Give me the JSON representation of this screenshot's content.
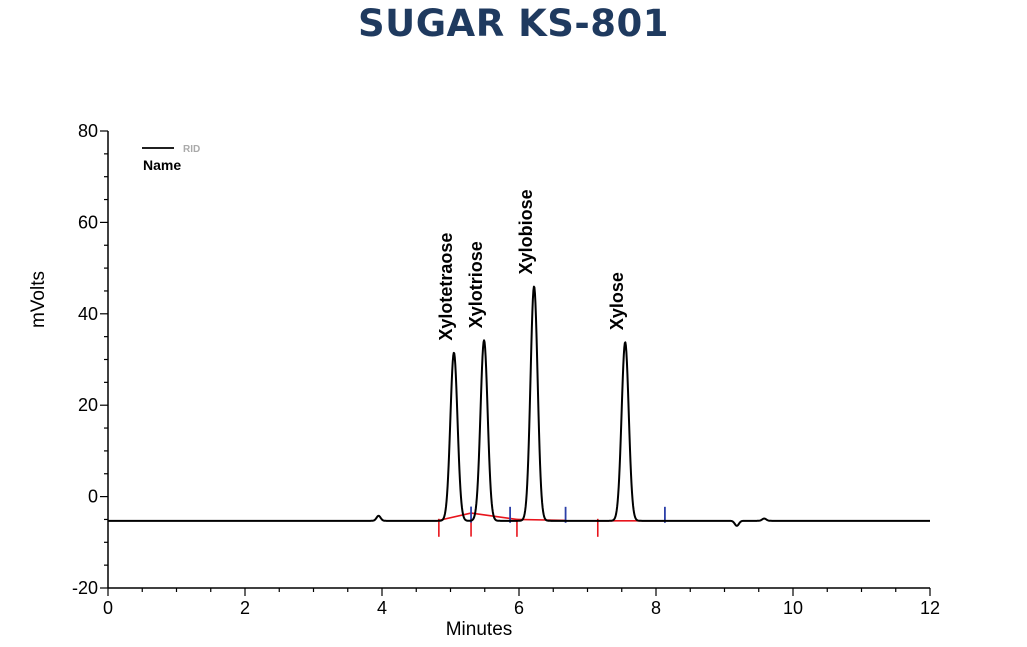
{
  "page": {
    "title": "SUGAR KS-801",
    "title_color": "#1f3a5f"
  },
  "legend": {
    "series_tag": "RID",
    "header": "Name",
    "tag_color": "#aaaaaa"
  },
  "chart_data": {
    "type": "line",
    "title": "SUGAR KS-801",
    "xlabel": "Minutes",
    "ylabel": "mVolts",
    "xlim": [
      0,
      12
    ],
    "ylim": [
      -20,
      80
    ],
    "xticks": [
      0,
      2,
      4,
      6,
      8,
      10,
      12
    ],
    "yticks": [
      -20,
      0,
      20,
      40,
      60,
      80
    ],
    "grid": false,
    "legend_position": "top-left",
    "series": [
      {
        "name": "RID",
        "color": "#000000",
        "baseline": -5.3,
        "peaks": [
          {
            "name": "Xylotetraose",
            "rt": 5.05,
            "height": 31.5
          },
          {
            "name": "Xylotriose",
            "rt": 5.49,
            "height": 34.2
          },
          {
            "name": "Xylobiose",
            "rt": 6.22,
            "height": 46.0
          },
          {
            "name": "Xylose",
            "rt": 7.55,
            "height": 33.8
          }
        ],
        "minor_features": [
          {
            "rt": 3.95,
            "height": -4.2
          },
          {
            "rt": 9.18,
            "height": -6.4
          },
          {
            "rt": 9.58,
            "height": -4.8
          }
        ]
      }
    ],
    "integration_baselines": [
      {
        "start": 4.83,
        "start_y": -5.2,
        "end": 5.3,
        "end_y": -3.6
      },
      {
        "start": 5.3,
        "start_y": -3.6,
        "end": 5.97,
        "end_y": -5.0
      },
      {
        "start": 5.97,
        "start_y": -5.0,
        "end": 6.68,
        "end_y": -5.2
      },
      {
        "start": 7.15,
        "start_y": -5.3,
        "end": 8.13,
        "end_y": -5.3
      }
    ],
    "peak_start_marks": [
      4.83,
      5.3,
      5.97,
      7.15
    ],
    "peak_end_marks": [
      5.3,
      5.87,
      6.68,
      8.13
    ],
    "baseline_color": "#e8141c",
    "end_mark_color": "#2b3fa8",
    "peak_labels": [
      "Xylotetraose",
      "Xylotriose",
      "Xylobiose",
      "Xylose"
    ]
  }
}
